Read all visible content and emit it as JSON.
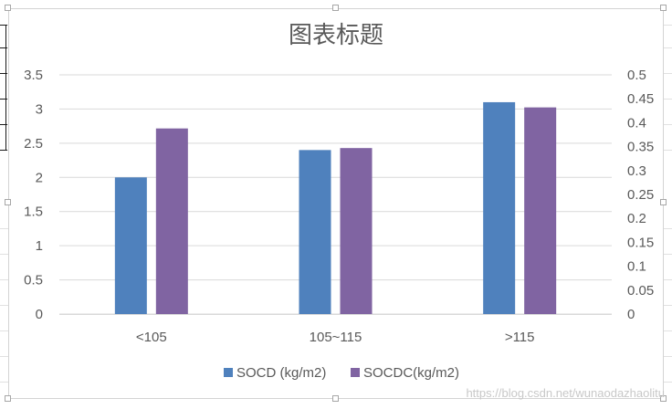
{
  "chart_data": {
    "type": "bar",
    "title": "图表标题",
    "categories": [
      "<105",
      "105~115",
      ">115"
    ],
    "series": [
      {
        "name": "SOCD (kg/m2)",
        "axis": "left",
        "color": "#4f81bd",
        "values": [
          2.0,
          2.4,
          3.1
        ]
      },
      {
        "name": "SOCDC(kg/m2)",
        "axis": "right",
        "color": "#8064a2",
        "values": [
          0.388,
          0.347,
          0.432
        ]
      }
    ],
    "y_left": {
      "ylim": [
        0,
        3.5
      ],
      "ticks": [
        "0",
        "0.5",
        "1",
        "1.5",
        "2",
        "2.5",
        "3",
        "3.5"
      ]
    },
    "y_right": {
      "ylim": [
        0,
        0.5
      ],
      "ticks": [
        "0",
        "0.05",
        "0.1",
        "0.15",
        "0.2",
        "0.25",
        "0.3",
        "0.35",
        "0.4",
        "0.45",
        "0.5"
      ]
    },
    "grid": true,
    "legend": "bottom"
  },
  "watermark": "https://blog.csdn.net/wunaodazhaolitu"
}
